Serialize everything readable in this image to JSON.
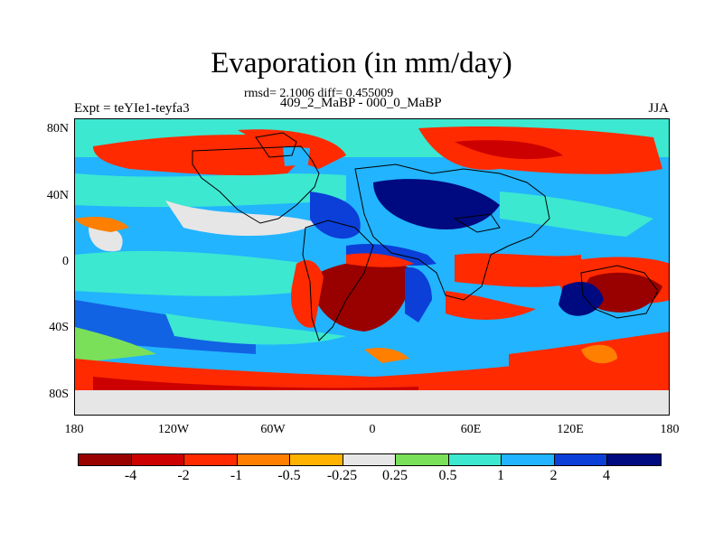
{
  "title": "Evaporation (in mm/day)",
  "stats": "rmsd= 2.1006 diff= 0.455009",
  "period": "409_2_MaBP - 000_0_MaBP",
  "experiment": "Expt = teYIe1-teyfa3",
  "season": "JJA",
  "lat_labels": [
    "80N",
    "40N",
    "0",
    "40S",
    "80S"
  ],
  "lon_labels": [
    "180",
    "120W",
    "60W",
    "0",
    "60E",
    "120E",
    "180"
  ],
  "colorbar": {
    "labels": [
      "-4",
      "-2",
      "-1",
      "-0.5",
      "-0.25",
      "0.25",
      "0.5",
      "1",
      "2",
      "4"
    ],
    "colors": [
      "#990000",
      "#cc0000",
      "#ff2a00",
      "#ff7f00",
      "#ffb300",
      "#e6e6e6",
      "#7ae05a",
      "#3ce8d0",
      "#22b4ff",
      "#0b3fd8",
      "#000a80"
    ]
  }
}
